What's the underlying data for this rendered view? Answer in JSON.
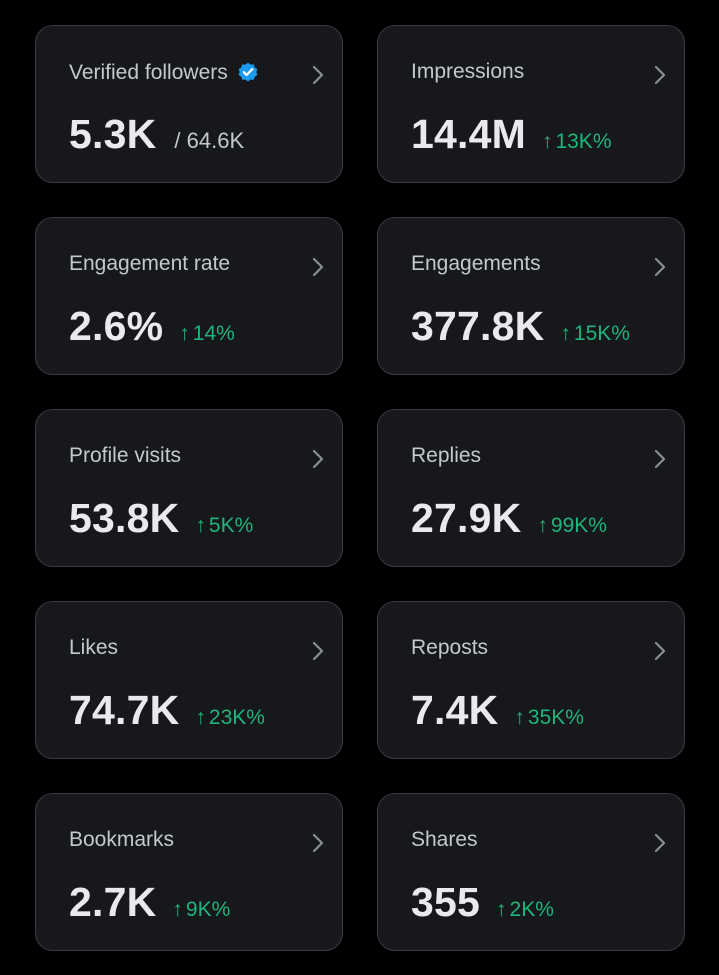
{
  "colors": {
    "background": "#000000",
    "card": "#17181c",
    "card_border": "#3a3c42",
    "label": "#c4c8cc",
    "value": "#e8eaed",
    "positive": "#1fb57a",
    "verified": "#1d9bf0"
  },
  "cards": [
    {
      "title": "Verified followers",
      "value": "5.3K",
      "sub": "/ 64.6K",
      "delta": "",
      "arrow": "",
      "icon": "verified-badge-icon"
    },
    {
      "title": "Impressions",
      "value": "14.4M",
      "sub": "",
      "delta": "13K%",
      "arrow": "↑"
    },
    {
      "title": "Engagement rate",
      "value": "2.6%",
      "sub": "",
      "delta": "14%",
      "arrow": "↑"
    },
    {
      "title": "Engagements",
      "value": "377.8K",
      "sub": "",
      "delta": "15K%",
      "arrow": "↑"
    },
    {
      "title": "Profile visits",
      "value": "53.8K",
      "sub": "",
      "delta": "5K%",
      "arrow": "↑"
    },
    {
      "title": "Replies",
      "value": "27.9K",
      "sub": "",
      "delta": "99K%",
      "arrow": "↑"
    },
    {
      "title": "Likes",
      "value": "74.7K",
      "sub": "",
      "delta": "23K%",
      "arrow": "↑"
    },
    {
      "title": "Reposts",
      "value": "7.4K",
      "sub": "",
      "delta": "35K%",
      "arrow": "↑"
    },
    {
      "title": "Bookmarks",
      "value": "2.7K",
      "sub": "",
      "delta": "9K%",
      "arrow": "↑"
    },
    {
      "title": "Shares",
      "value": "355",
      "sub": "",
      "delta": "2K%",
      "arrow": "↑"
    }
  ]
}
